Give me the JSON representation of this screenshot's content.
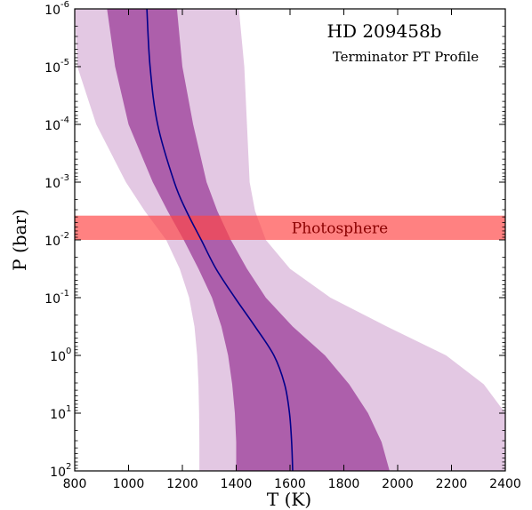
{
  "chart_data": {
    "type": "area",
    "title": "HD 209458b",
    "subtitle": "Terminator PT Profile",
    "xlabel": "T (K)",
    "ylabel": "P (bar)",
    "xlim": [
      800,
      2400
    ],
    "ylim_log10": [
      -6,
      2
    ],
    "y_scale": "log",
    "y_inverted": true,
    "x_ticks": [
      "800",
      "1000",
      "1200",
      "1400",
      "1600",
      "1800",
      "2000",
      "2200",
      "2400"
    ],
    "y_ticks": [
      {
        "base": "10",
        "exp": "-6"
      },
      {
        "base": "10",
        "exp": "-5"
      },
      {
        "base": "10",
        "exp": "-4"
      },
      {
        "base": "10",
        "exp": "-3"
      },
      {
        "base": "10",
        "exp": "-2"
      },
      {
        "base": "10",
        "exp": "-1"
      },
      {
        "base": "10",
        "exp": "0"
      },
      {
        "base": "10",
        "exp": "1"
      },
      {
        "base": "10",
        "exp": "2"
      }
    ],
    "pressure_log10": [
      -6,
      -5,
      -4,
      -3,
      -2.5,
      -2,
      -1.5,
      -1,
      -0.5,
      0,
      0.5,
      1,
      1.5,
      2
    ],
    "median_T": [
      1068,
      1080,
      1108,
      1170,
      1215,
      1270,
      1325,
      1395,
      1470,
      1540,
      1580,
      1598,
      1606,
      1610
    ],
    "sigma1": {
      "lower": [
        920,
        950,
        1000,
        1090,
        1145,
        1205,
        1260,
        1310,
        1345,
        1370,
        1385,
        1395,
        1400,
        1400
      ],
      "upper": [
        1180,
        1200,
        1240,
        1290,
        1330,
        1380,
        1440,
        1510,
        1610,
        1730,
        1820,
        1890,
        1940,
        1970
      ]
    },
    "sigma2": {
      "lower": [
        800,
        810,
        880,
        990,
        1060,
        1140,
        1190,
        1225,
        1245,
        1255,
        1260,
        1262,
        1263,
        1263
      ],
      "upper": [
        1410,
        1430,
        1440,
        1450,
        1470,
        1510,
        1600,
        1750,
        1960,
        2180,
        2320,
        2400,
        2400,
        2400
      ]
    },
    "photosphere": {
      "label": "Photosphere",
      "p_log10_range": [
        -2.42,
        -2.0
      ]
    },
    "colors": {
      "sigma2": "#e3c8e3",
      "sigma1": "#ad5fab",
      "median": "#00008b",
      "photosphere": "#ff4545",
      "photosphere_text": "#8b0000"
    }
  }
}
